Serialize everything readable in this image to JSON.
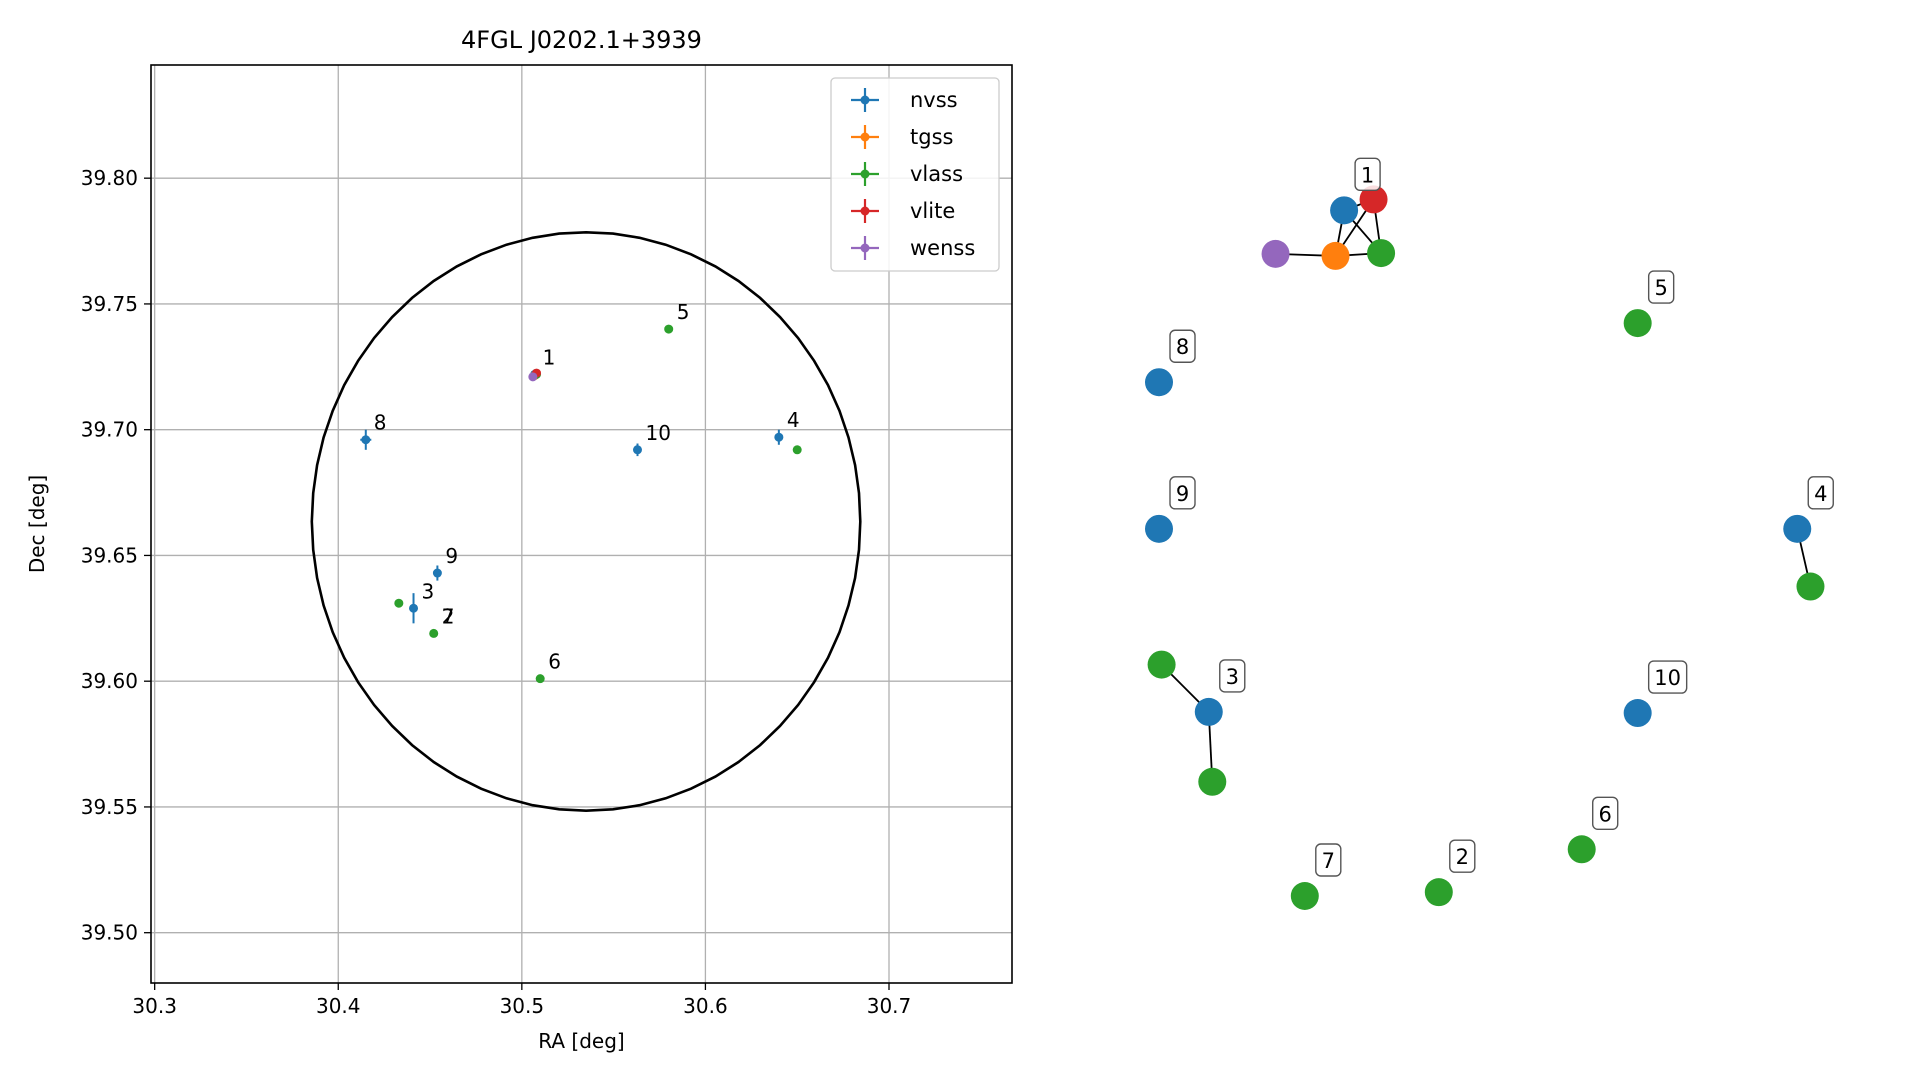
{
  "chart_data": [
    {
      "type": "scatter",
      "title": "4FGL J0202.1+3939",
      "xlabel": "RA [deg]",
      "ylabel": "Dec [deg]",
      "xlim": [
        30.298,
        30.767
      ],
      "ylim": [
        39.48,
        39.845
      ],
      "xticks": [
        "30.3",
        "30.4",
        "30.5",
        "30.6",
        "30.7"
      ],
      "yticks": [
        "39.50",
        "39.55",
        "39.60",
        "39.65",
        "39.70",
        "39.75",
        "39.80"
      ],
      "grid": true,
      "legend_position": "top-right",
      "circle": {
        "center_ra": 30.535,
        "center_dec": 39.6635,
        "radius_deg": 0.115
      },
      "series": [
        {
          "name": "nvss",
          "color": "#1f77b4",
          "points": [
            {
              "ra": 30.415,
              "dec": 39.696,
              "err_ra": 0.003,
              "err_dec": 0.004
            },
            {
              "ra": 30.441,
              "dec": 39.629,
              "err_ra": 0.002,
              "err_dec": 0.006
            },
            {
              "ra": 30.454,
              "dec": 39.643,
              "err_ra": 0.002,
              "err_dec": 0.003
            },
            {
              "ra": 30.563,
              "dec": 39.692,
              "err_ra": 0.002,
              "err_dec": 0.0025
            },
            {
              "ra": 30.64,
              "dec": 39.697,
              "err_ra": 0.002,
              "err_dec": 0.003
            },
            {
              "ra": 30.507,
              "dec": 39.722,
              "err_ra": 0.002,
              "err_dec": 0.002
            }
          ]
        },
        {
          "name": "tgss",
          "color": "#ff7f0e",
          "points": [
            {
              "ra": 30.507,
              "dec": 39.7215,
              "err_ra": 0.001,
              "err_dec": 0.001
            }
          ]
        },
        {
          "name": "vlass",
          "color": "#2ca02c",
          "points": [
            {
              "ra": 30.58,
              "dec": 39.74,
              "err_ra": 0.0,
              "err_dec": 0.0
            },
            {
              "ra": 30.65,
              "dec": 39.692,
              "err_ra": 0.0,
              "err_dec": 0.0
            },
            {
              "ra": 30.433,
              "dec": 39.631,
              "err_ra": 0.0,
              "err_dec": 0.0
            },
            {
              "ra": 30.452,
              "dec": 39.619,
              "err_ra": 0.0,
              "err_dec": 0.0
            },
            {
              "ra": 30.51,
              "dec": 39.601,
              "err_ra": 0.0,
              "err_dec": 0.0
            },
            {
              "ra": 30.508,
              "dec": 39.722,
              "err_ra": 0.0,
              "err_dec": 0.0
            }
          ]
        },
        {
          "name": "vlite",
          "color": "#d62728",
          "points": [
            {
              "ra": 30.508,
              "dec": 39.7225,
              "err_ra": 0.001,
              "err_dec": 0.001
            }
          ]
        },
        {
          "name": "wenss",
          "color": "#9467bd",
          "points": [
            {
              "ra": 30.506,
              "dec": 39.721,
              "err_ra": 0.001,
              "err_dec": 0.001
            }
          ]
        }
      ],
      "annotations": [
        {
          "label": "1",
          "ra": 30.507,
          "dec": 39.722
        },
        {
          "label": "2",
          "ra": 30.452,
          "dec": 39.619
        },
        {
          "label": "7",
          "ra": 30.452,
          "dec": 39.619
        },
        {
          "label": "3",
          "ra": 30.441,
          "dec": 39.629
        },
        {
          "label": "4",
          "ra": 30.64,
          "dec": 39.697
        },
        {
          "label": "5",
          "ra": 30.58,
          "dec": 39.74
        },
        {
          "label": "6",
          "ra": 30.51,
          "dec": 39.601
        },
        {
          "label": "8",
          "ra": 30.415,
          "dec": 39.696
        },
        {
          "label": "9",
          "ra": 30.454,
          "dec": 39.643
        },
        {
          "label": "10",
          "ra": 30.563,
          "dec": 39.692
        }
      ]
    },
    {
      "type": "network",
      "axes": "off",
      "nodes": [
        {
          "id": "1-nvss",
          "color": "#1f77b4",
          "u": 0.2633,
          "v": 0.9657,
          "label": "1"
        },
        {
          "id": "1-tgss",
          "color": "#ff7f0e",
          "u": 0.2511,
          "v": 0.9015
        },
        {
          "id": "1-vlass",
          "color": "#2ca02c",
          "u": 0.3159,
          "v": 0.9055
        },
        {
          "id": "1-vlite",
          "color": "#d62728",
          "u": 0.3052,
          "v": 0.9811
        },
        {
          "id": "1-wenss",
          "color": "#9467bd",
          "u": 0.1658,
          "v": 0.9044
        },
        {
          "id": "5-vlass",
          "color": "#2ca02c",
          "u": 0.6809,
          "v": 0.8069,
          "label": "5"
        },
        {
          "id": "8-nvss",
          "color": "#1f77b4",
          "u": 0.0,
          "v": 0.7236,
          "label": "8"
        },
        {
          "id": "9-nvss",
          "color": "#1f77b4",
          "u": 0.0,
          "v": 0.5171,
          "label": "9"
        },
        {
          "id": "4-nvss",
          "color": "#1f77b4",
          "u": 0.9079,
          "v": 0.5171,
          "label": "4"
        },
        {
          "id": "4-vlass",
          "color": "#2ca02c",
          "u": 0.9267,
          "v": 0.4359
        },
        {
          "id": "3-nvss",
          "color": "#1f77b4",
          "u": 0.0708,
          "v": 0.2593,
          "label": "3"
        },
        {
          "id": "3-vlass-a",
          "color": "#2ca02c",
          "u": 0.0037,
          "v": 0.3259
        },
        {
          "id": "3-vlass-b",
          "color": "#2ca02c",
          "u": 0.0758,
          "v": 0.1609
        },
        {
          "id": "10-nvss",
          "color": "#1f77b4",
          "u": 0.6809,
          "v": 0.2577,
          "label": "10"
        },
        {
          "id": "6-vlass",
          "color": "#2ca02c",
          "u": 0.6013,
          "v": 0.0658,
          "label": "6"
        },
        {
          "id": "2-vlass",
          "color": "#2ca02c",
          "u": 0.398,
          "v": 0.0054,
          "label": "2"
        },
        {
          "id": "7-vlass",
          "color": "#2ca02c",
          "u": 0.2074,
          "v": 0.0,
          "label": "7"
        }
      ],
      "edges": [
        [
          "1-tgss",
          "1-nvss"
        ],
        [
          "1-tgss",
          "1-vlass"
        ],
        [
          "1-tgss",
          "1-wenss"
        ],
        [
          "1-tgss",
          "1-vlite"
        ],
        [
          "1-nvss",
          "1-vlass"
        ],
        [
          "1-nvss",
          "1-vlite"
        ],
        [
          "1-vlass",
          "1-vlite"
        ],
        [
          "4-nvss",
          "4-vlass"
        ],
        [
          "3-nvss",
          "3-vlass-a"
        ],
        [
          "3-nvss",
          "3-vlass-b"
        ]
      ]
    }
  ]
}
